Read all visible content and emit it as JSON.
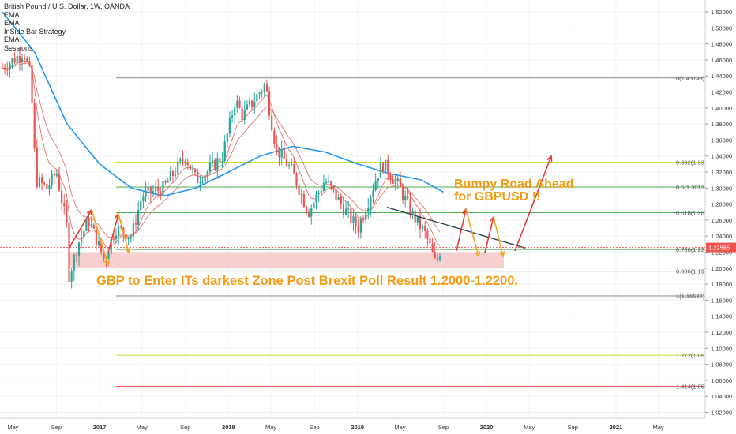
{
  "header": {
    "title": "British Pound / U.S. Dollar, 1W, OANDA",
    "indicators": [
      "EMA",
      "EMA",
      "InSide Bar Strategy",
      "EMA",
      "Sessions"
    ]
  },
  "current_price_label": "1.22585",
  "colors": {
    "up": "#26a69a",
    "down": "#ef5350",
    "ema_blue": "#2196f3",
    "ema_red": "#e57373",
    "zone": "#f8c8c8",
    "arrow_red": "#e53935",
    "arrow_orange": "#f5a623",
    "trendline": "#1e3a4a",
    "annotation": "#f39c12"
  },
  "annotations": {
    "main": "GBP to Enter ITs darkest Zone Post Brexit Poll Result 1.2000-1.2200.",
    "side_line1": "Bumpy Road Ahead",
    "side_line2": "for GBPUSD !!"
  },
  "chart_data": {
    "type": "candlestick",
    "title": "British Pound / U.S. Dollar, 1W, OANDA",
    "y_axis": {
      "ylim": [
        1.01,
        1.53
      ],
      "ticks": [
        "1.52000",
        "1.50000",
        "1.48000",
        "1.46000",
        "1.44000",
        "1.42000",
        "1.40000",
        "1.38000",
        "1.36000",
        "1.34000",
        "1.32000",
        "1.30000",
        "1.28000",
        "1.26000",
        "1.24000",
        "1.22000",
        "1.20000",
        "1.18000",
        "1.16000",
        "1.14000",
        "1.12000",
        "1.10000",
        "1.08000",
        "1.06000",
        "1.04000",
        "1.02000"
      ]
    },
    "x_axis": {
      "ticks": [
        "May",
        "Sep",
        "2017",
        "May",
        "Sep",
        "2018",
        "May",
        "Sep",
        "2019",
        "May",
        "Sep",
        "2020",
        "May",
        "Sep",
        "2021",
        "May"
      ]
    },
    "fib_levels": [
      {
        "label": "0(1.43743)",
        "value": 1.43743,
        "color": "#888888"
      },
      {
        "label": "0.382(1.33",
        "value": 1.3323,
        "color": "#cddc39"
      },
      {
        "label": "0.5(1.3013",
        "value": 1.3013,
        "color": "#4caf50"
      },
      {
        "label": "0.618(1.26",
        "value": 1.2693,
        "color": "#4caf50"
      },
      {
        "label": "0.786(1.22",
        "value": 1.2233,
        "color": "#4caf50"
      },
      {
        "label": "0.886(1.19",
        "value": 1.1962,
        "color": "#888888"
      },
      {
        "label": "1(1.16532)",
        "value": 1.16532,
        "color": "#888888"
      },
      {
        "label": "1.272(1.09",
        "value": 1.0913,
        "color": "#cddc39"
      },
      {
        "label": "1.414(1.05",
        "value": 1.0526,
        "color": "#ef5350"
      }
    ],
    "zone": {
      "low": 1.2,
      "high": 1.22
    },
    "trendline": {
      "from": {
        "date": "2019-03-25",
        "price": 1.276
      },
      "to": {
        "date": "2020-04-20",
        "price": 1.225
      }
    },
    "price_path": [
      {
        "date": "2016-04-01",
        "price": 1.45
      },
      {
        "date": "2016-06-01",
        "price": 1.47
      },
      {
        "date": "2016-06-20",
        "price": 1.44
      },
      {
        "date": "2016-07-05",
        "price": 1.31
      },
      {
        "date": "2016-08-05",
        "price": 1.3
      },
      {
        "date": "2016-09-01",
        "price": 1.32
      },
      {
        "date": "2016-10-01",
        "price": 1.25
      },
      {
        "date": "2016-10-07",
        "price": 1.19
      },
      {
        "date": "2016-11-01",
        "price": 1.23
      },
      {
        "date": "2016-12-01",
        "price": 1.26
      },
      {
        "date": "2017-01-15",
        "price": 1.21
      },
      {
        "date": "2017-02-15",
        "price": 1.25
      },
      {
        "date": "2017-04-01",
        "price": 1.24
      },
      {
        "date": "2017-05-01",
        "price": 1.29
      },
      {
        "date": "2017-07-01",
        "price": 1.3
      },
      {
        "date": "2017-09-01",
        "price": 1.34
      },
      {
        "date": "2017-10-01",
        "price": 1.31
      },
      {
        "date": "2017-11-01",
        "price": 1.32
      },
      {
        "date": "2017-12-15",
        "price": 1.34
      },
      {
        "date": "2018-01-20",
        "price": 1.41
      },
      {
        "date": "2018-02-10",
        "price": 1.39
      },
      {
        "date": "2018-04-15",
        "price": 1.43
      },
      {
        "date": "2018-05-15",
        "price": 1.35
      },
      {
        "date": "2018-07-01",
        "price": 1.32
      },
      {
        "date": "2018-08-15",
        "price": 1.27
      },
      {
        "date": "2018-10-01",
        "price": 1.31
      },
      {
        "date": "2018-12-15",
        "price": 1.26
      },
      {
        "date": "2019-01-03",
        "price": 1.25
      },
      {
        "date": "2019-03-01",
        "price": 1.32
      },
      {
        "date": "2019-03-15",
        "price": 1.33
      },
      {
        "date": "2019-05-01",
        "price": 1.3
      },
      {
        "date": "2019-06-01",
        "price": 1.27
      },
      {
        "date": "2019-07-15",
        "price": 1.24
      },
      {
        "date": "2019-08-10",
        "price": 1.205
      },
      {
        "date": "2019-08-26",
        "price": 1.2258
      }
    ],
    "ema_long": [
      {
        "date": "2016-04-01",
        "price": 1.52
      },
      {
        "date": "2016-07-01",
        "price": 1.47
      },
      {
        "date": "2016-10-01",
        "price": 1.38
      },
      {
        "date": "2017-01-01",
        "price": 1.33
      },
      {
        "date": "2017-04-01",
        "price": 1.3
      },
      {
        "date": "2017-07-01",
        "price": 1.29
      },
      {
        "date": "2017-10-01",
        "price": 1.3
      },
      {
        "date": "2018-01-01",
        "price": 1.32
      },
      {
        "date": "2018-04-01",
        "price": 1.34
      },
      {
        "date": "2018-07-01",
        "price": 1.352
      },
      {
        "date": "2018-10-01",
        "price": 1.345
      },
      {
        "date": "2019-01-01",
        "price": 1.33
      },
      {
        "date": "2019-04-01",
        "price": 1.318
      },
      {
        "date": "2019-07-01",
        "price": 1.31
      },
      {
        "date": "2019-09-01",
        "price": 1.295
      }
    ]
  }
}
